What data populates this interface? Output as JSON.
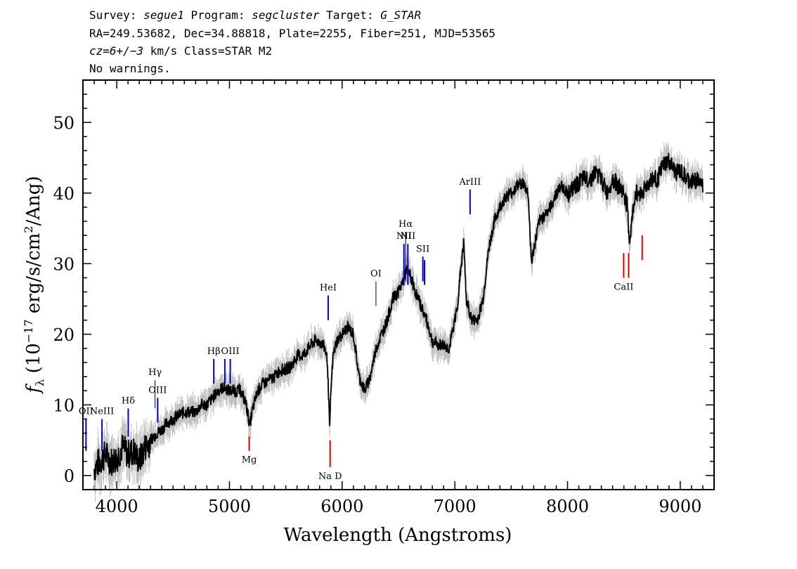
{
  "header": {
    "line1_prefix": "Survey: ",
    "survey": "segue1",
    "line1_mid1": " Program: ",
    "program": "segcluster",
    "line1_mid2": " Target: ",
    "target": "G_STAR",
    "line2": "RA=249.53682, Dec=34.88818, Plate=2255, Fiber=251, MJD=53565",
    "line3_cz": "cz=6+/−3",
    "line3_rest": " km/s Class=STAR M2",
    "line4": "No warnings."
  },
  "chart_data": {
    "type": "line",
    "xlabel": "Wavelength (Angstroms)",
    "ylabel_prefix": "f",
    "ylabel_sub": "λ",
    "ylabel_rest1": " (10",
    "ylabel_sup1": "−17",
    "ylabel_rest2": " erg/s/cm",
    "ylabel_sup2": "2",
    "ylabel_rest3": "/Ang)",
    "xlim": [
      3700,
      9300
    ],
    "ylim": [
      -2,
      56
    ],
    "xticks": [
      4000,
      5000,
      6000,
      7000,
      8000,
      9000
    ],
    "yticks": [
      0,
      10,
      20,
      30,
      40,
      50
    ],
    "colors": {
      "flux": "#000000",
      "error": "#c0c0c0",
      "emission": "#0000cc",
      "absorption": "#dd0000",
      "weak": "#000000"
    },
    "series": [
      {
        "x": [
          3800,
          3850,
          3900,
          3950,
          4000,
          4050,
          4100,
          4150,
          4200,
          4250,
          4300,
          4350,
          4400,
          4450,
          4500,
          4550,
          4600,
          4650,
          4700,
          4750,
          4800,
          4850,
          4900,
          4950,
          5000,
          5050,
          5100,
          5150,
          5180,
          5200,
          5250,
          5300,
          5350,
          5400,
          5450,
          5500,
          5550,
          5600,
          5650,
          5700,
          5750,
          5800,
          5850,
          5870,
          5890,
          5900,
          5920,
          5950,
          6000,
          6050,
          6100,
          6150,
          6200,
          6250,
          6300,
          6350,
          6400,
          6450,
          6500,
          6550,
          6563,
          6600,
          6650,
          6700,
          6750,
          6800,
          6850,
          6900,
          6950,
          7000,
          7030,
          7050,
          7080,
          7100,
          7150,
          7200,
          7250,
          7300,
          7350,
          7400,
          7450,
          7500,
          7550,
          7600,
          7650,
          7680,
          7700,
          7750,
          7800,
          7850,
          7900,
          7950,
          8000,
          8050,
          8100,
          8150,
          8200,
          8250,
          8300,
          8350,
          8400,
          8450,
          8500,
          8530,
          8550,
          8600,
          8650,
          8700,
          8750,
          8800,
          8850,
          8900,
          8950,
          9000,
          9050,
          9100,
          9150,
          9200
        ],
        "y": [
          1,
          2,
          3,
          2,
          2.5,
          4,
          3,
          3.5,
          2,
          4,
          5,
          6,
          6.5,
          7.5,
          8,
          8.5,
          9,
          9,
          9,
          10,
          10,
          11,
          12,
          12.5,
          12,
          12,
          12,
          10,
          7,
          9,
          12,
          13,
          13.5,
          14,
          15,
          15,
          15.5,
          17,
          17,
          18,
          19,
          19,
          18,
          16,
          6,
          12,
          17,
          19,
          20,
          21,
          20,
          14,
          12,
          14,
          18,
          20,
          22,
          25,
          26,
          28,
          29,
          28.5,
          26,
          24,
          22,
          19,
          18.5,
          18.5,
          18,
          22,
          25,
          29,
          33,
          25,
          22,
          22,
          25,
          32,
          36,
          38,
          39.5,
          40,
          41,
          41.5,
          40,
          30,
          32,
          36,
          37,
          38,
          40,
          41,
          40,
          40.5,
          41.5,
          42,
          42,
          43,
          42,
          40,
          42,
          41,
          40,
          38,
          33,
          40,
          40,
          41,
          42,
          42,
          44,
          44.5,
          43,
          43,
          42,
          41.5,
          42,
          41
        ]
      }
    ],
    "error_halfwidth": 1.4,
    "lines": [
      {
        "label": "OII",
        "x": 3727,
        "kind": "emission"
      },
      {
        "label": "NeIII",
        "x": 3869,
        "kind": "emission"
      },
      {
        "label": "Hδ",
        "x": 4102,
        "kind": "emission"
      },
      {
        "label": "Hγ",
        "x": 4340,
        "kind": "weak"
      },
      {
        "label": "OIII",
        "x": 4363,
        "kind": "emission"
      },
      {
        "label": "Hβ",
        "x": 4861,
        "kind": "emission"
      },
      {
        "label": "",
        "x": 4959,
        "kind": "emission"
      },
      {
        "label": "OIII",
        "x": 5007,
        "kind": "emission"
      },
      {
        "label": "Mg",
        "x": 5175,
        "kind": "absorption"
      },
      {
        "label": "HeI",
        "x": 5876,
        "kind": "emission"
      },
      {
        "label": "Na D",
        "x": 5893,
        "kind": "absorption"
      },
      {
        "label": "OI",
        "x": 6300,
        "kind": "weak"
      },
      {
        "label": "NII",
        "x": 6548,
        "kind": "emission"
      },
      {
        "label": "Hα",
        "x": 6563,
        "kind": "weak"
      },
      {
        "label": "NII",
        "x": 6583,
        "kind": "emission"
      },
      {
        "label": "SII",
        "x": 6716,
        "kind": "emission"
      },
      {
        "label": "",
        "x": 6731,
        "kind": "emission"
      },
      {
        "label": "ArIII",
        "x": 7135,
        "kind": "emission"
      },
      {
        "label": "CaII",
        "x": 8498,
        "kind": "absorption"
      },
      {
        "label": "",
        "x": 8542,
        "kind": "absorption"
      },
      {
        "label": "",
        "x": 8662,
        "kind": "absorption"
      }
    ]
  }
}
